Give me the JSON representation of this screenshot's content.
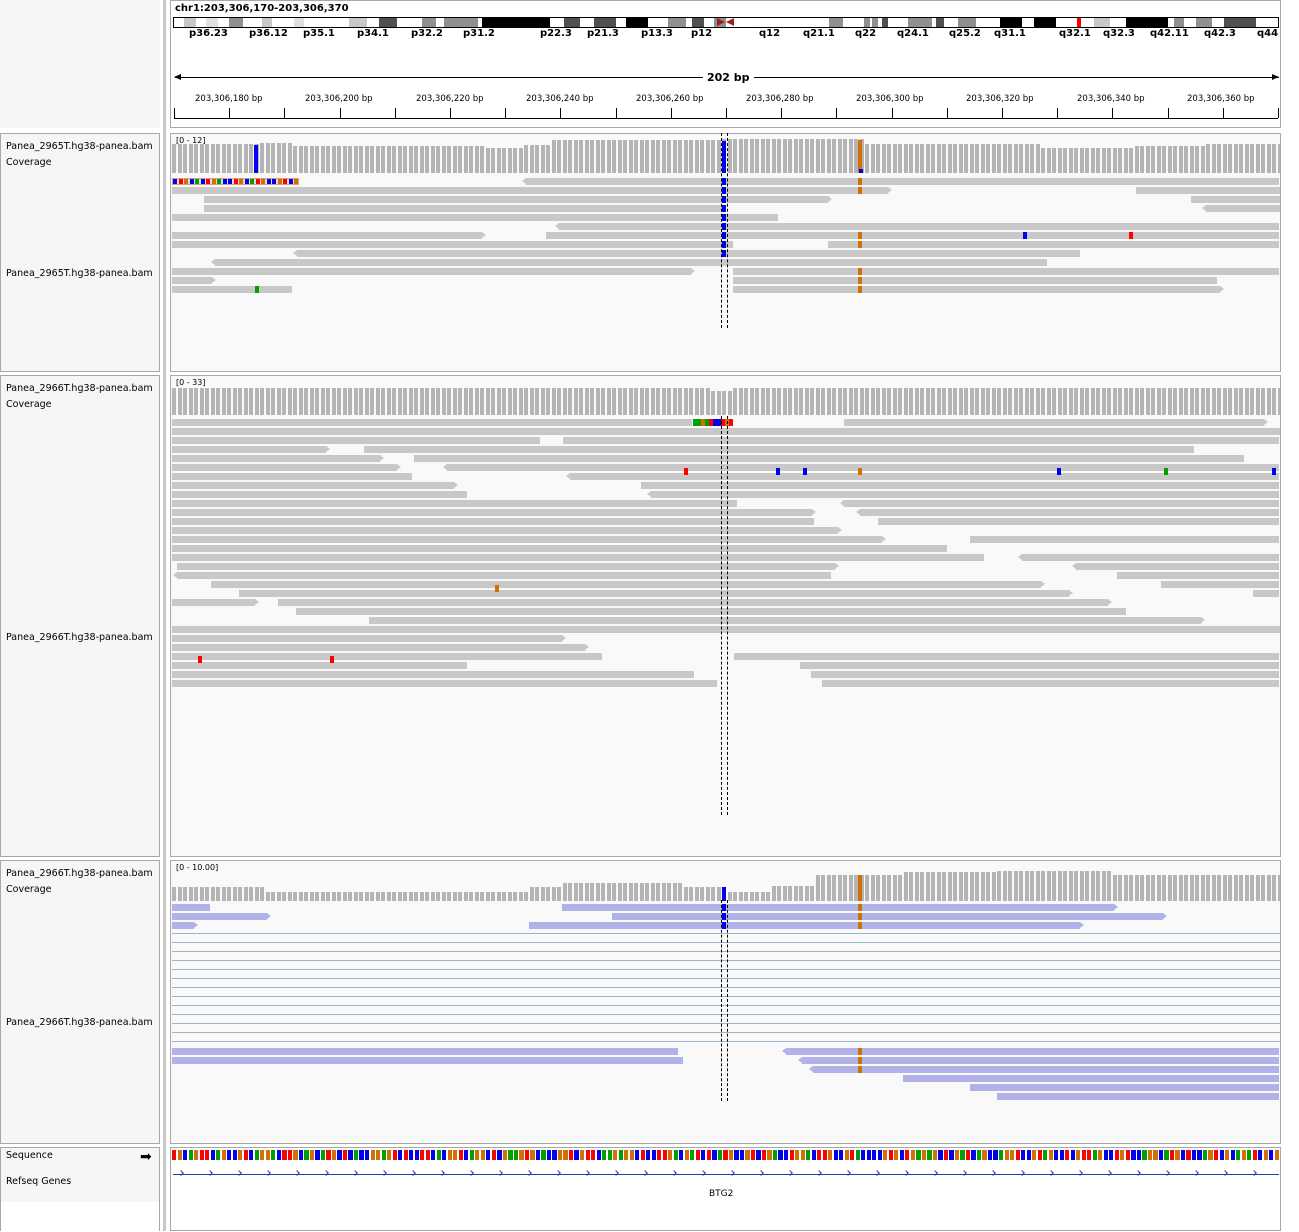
{
  "locus": "chr1:203,306,170-203,306,370",
  "cytobands": [
    "p36.23",
    "p36.12",
    "p35.1",
    "p34.1",
    "p32.2",
    "p31.2",
    "p22.3",
    "p21.3",
    "p13.3",
    "p12",
    "q12",
    "q21.1",
    "q22",
    "q24.1",
    "q25.2",
    "q31.1",
    "q32.1",
    "q32.3",
    "q42.11",
    "q42.3",
    "q44"
  ],
  "span_label": "202 bp",
  "ruler_ticks": [
    "203,306,180 bp",
    "203,306,200 bp",
    "203,306,220 bp",
    "203,306,240 bp",
    "203,306,260 bp",
    "203,306,280 bp",
    "203,306,300 bp",
    "203,306,320 bp",
    "203,306,340 bp",
    "203,306,360 bp"
  ],
  "tracks": [
    {
      "coverage_label": "Panea_2965T.hg38-panea.bam Coverage",
      "alignment_label": "Panea_2965T.hg38-panea.bam",
      "range": "[0 - 12]"
    },
    {
      "coverage_label": "Panea_2966T.hg38-panea.bam Coverage",
      "alignment_label": "Panea_2966T.hg38-panea.bam",
      "range": "[0 - 33]"
    },
    {
      "coverage_label": "Panea_2966T.hg38-panea.bam Coverage",
      "alignment_label": "Panea_2966T.hg38-panea.bam",
      "range": "[0 - 10.00]"
    }
  ],
  "sequence_label": "Sequence",
  "refseq_label": "Refseq Genes",
  "gene_name": "BTG2",
  "colors": {
    "A": "#00a000",
    "C": "#0000f0",
    "G": "#d17105",
    "T": "#ff0000",
    "read": "#c8c8c8",
    "purple_read": "#b0b2e8",
    "coverage": "#b4b4b4"
  }
}
